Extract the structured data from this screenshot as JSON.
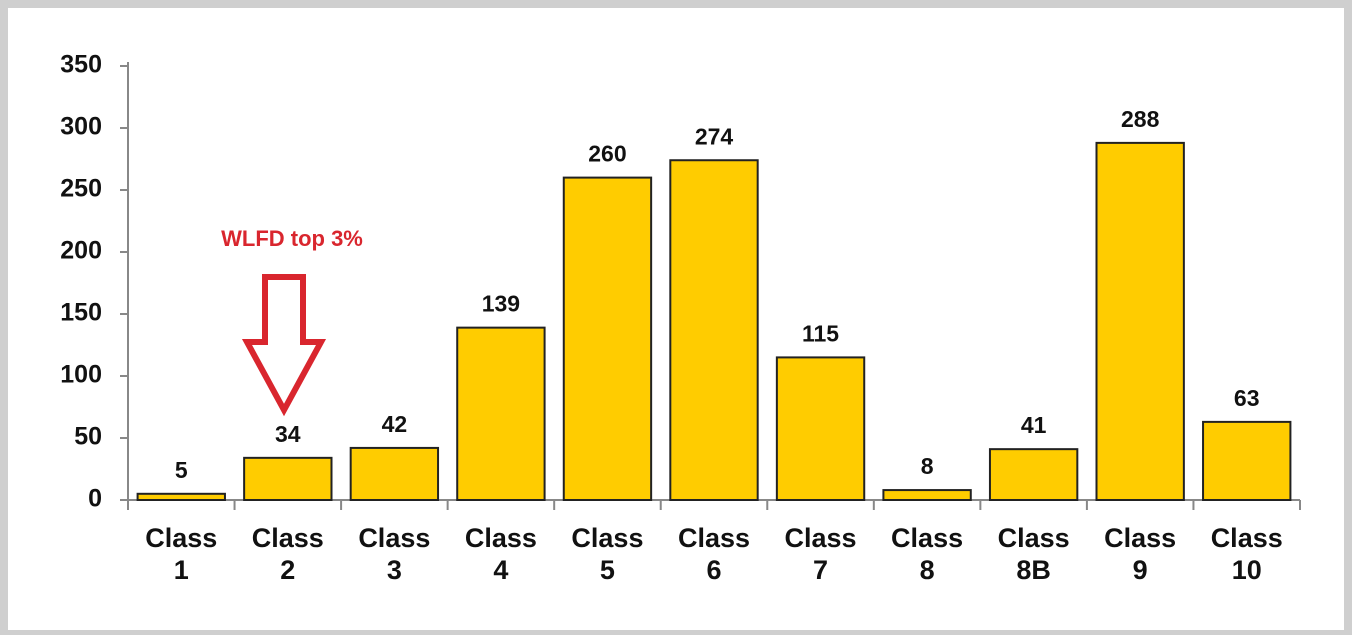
{
  "chart_data": {
    "type": "bar",
    "categories": [
      "Class 1",
      "Class 2",
      "Class 3",
      "Class 4",
      "Class 5",
      "Class 6",
      "Class 7",
      "Class 8",
      "Class 8B",
      "Class 9",
      "Class 10"
    ],
    "values": [
      5,
      34,
      42,
      139,
      260,
      274,
      115,
      8,
      41,
      288,
      63
    ],
    "color": "#ffcc00",
    "ylim": [
      0,
      350
    ],
    "yticks": [
      0,
      50,
      100,
      150,
      200,
      250,
      300,
      350
    ],
    "grid": false,
    "annotation": "WLFD top 3%"
  }
}
